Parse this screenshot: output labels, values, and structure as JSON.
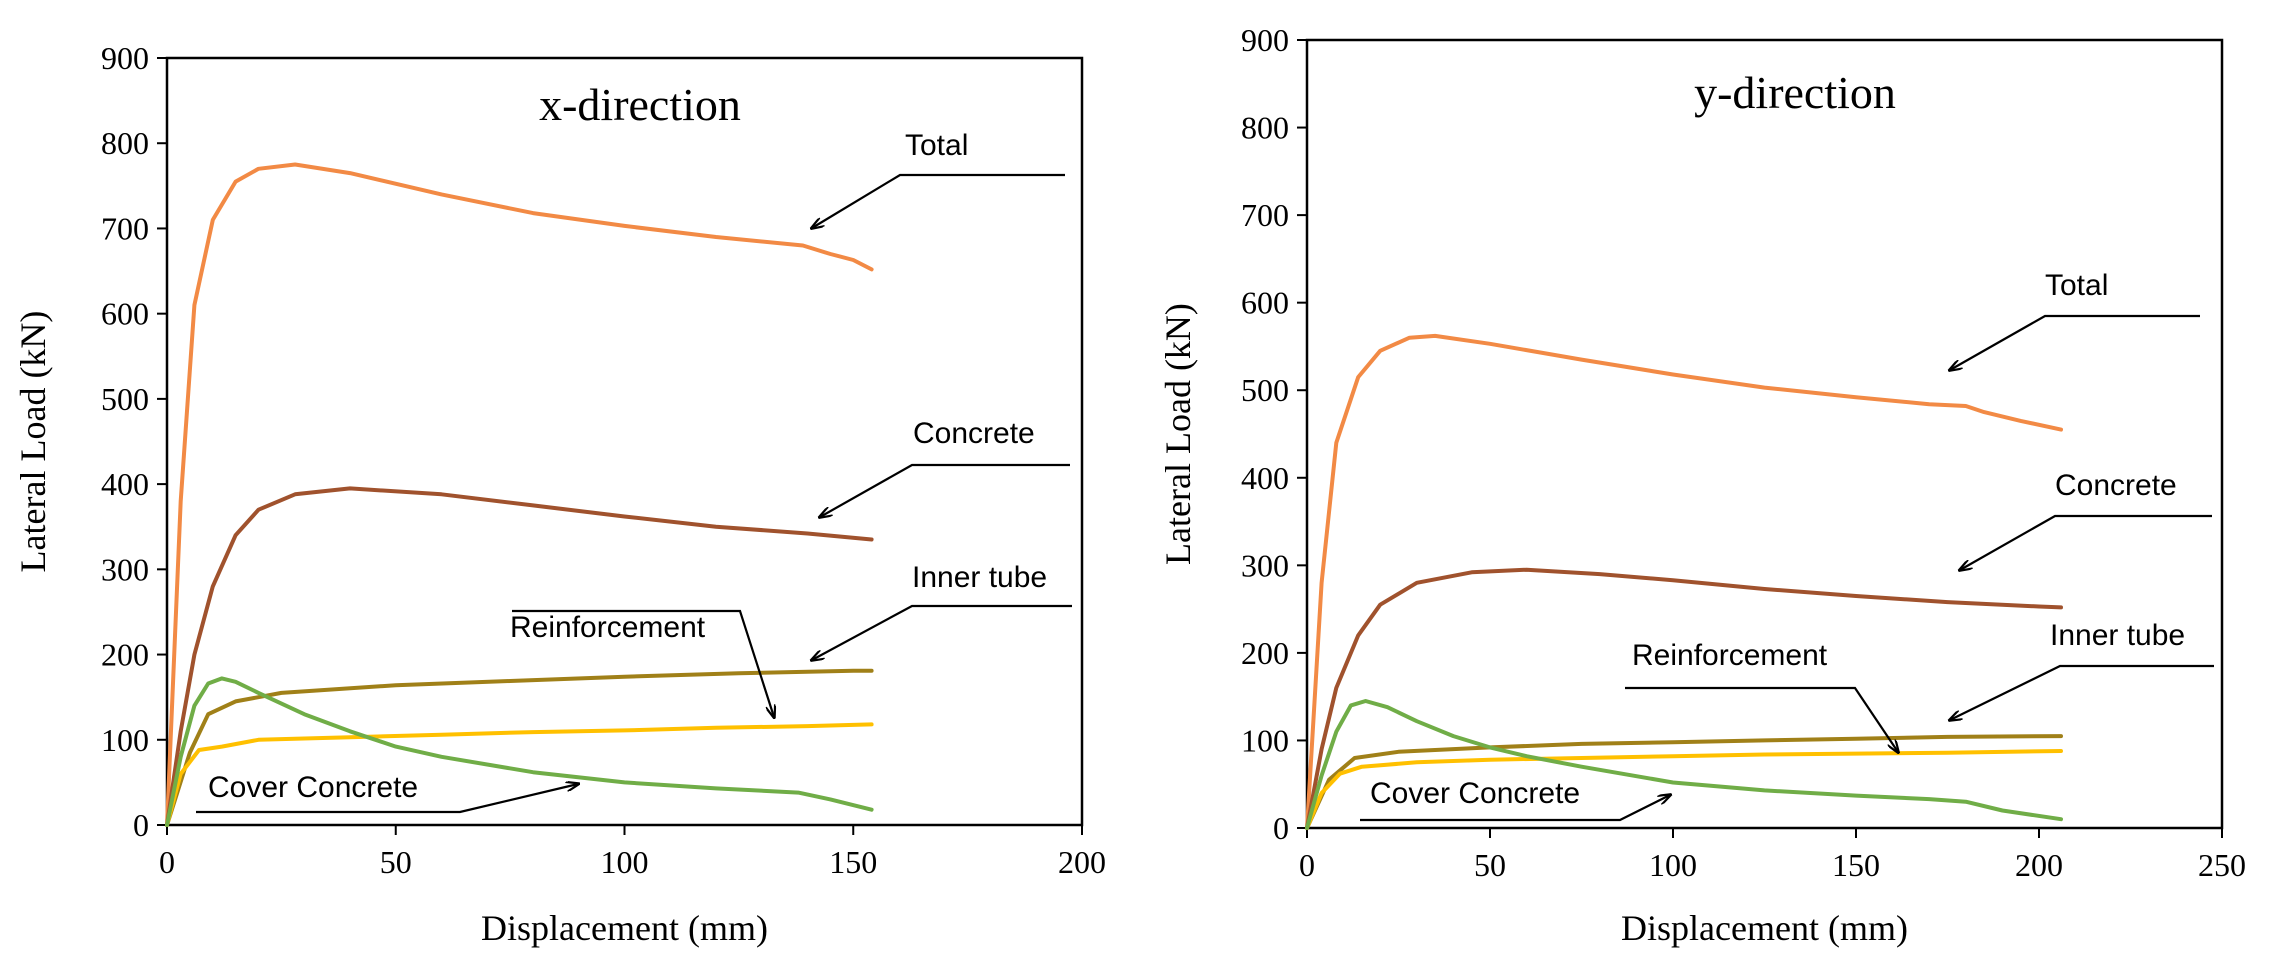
{
  "chart_data": [
    {
      "type": "line",
      "title": "x-direction",
      "xlabel": "Displacement (mm)",
      "ylabel": "Lateral Load (kN)",
      "xlim": [
        0,
        200
      ],
      "ylim": [
        0,
        900
      ],
      "xticks": [
        "0",
        "50",
        "100",
        "150",
        "200"
      ],
      "yticks": [
        "0",
        "100",
        "200",
        "300",
        "400",
        "500",
        "600",
        "700",
        "800",
        "900"
      ],
      "grid": false,
      "series": [
        {
          "name": "Total",
          "color": "#f28a45",
          "points": [
            [
              0,
              0
            ],
            [
              3,
              380
            ],
            [
              6,
              610
            ],
            [
              10,
              710
            ],
            [
              15,
              755
            ],
            [
              20,
              770
            ],
            [
              28,
              775
            ],
            [
              40,
              765
            ],
            [
              60,
              740
            ],
            [
              80,
              718
            ],
            [
              100,
              703
            ],
            [
              120,
              690
            ],
            [
              139,
              680
            ],
            [
              145,
              670
            ],
            [
              150,
              663
            ],
            [
              154,
              652
            ]
          ]
        },
        {
          "name": "Concrete",
          "color": "#a0522d",
          "points": [
            [
              0,
              0
            ],
            [
              3,
              110
            ],
            [
              6,
              200
            ],
            [
              10,
              280
            ],
            [
              15,
              340
            ],
            [
              20,
              370
            ],
            [
              28,
              388
            ],
            [
              40,
              395
            ],
            [
              60,
              388
            ],
            [
              80,
              375
            ],
            [
              100,
              362
            ],
            [
              120,
              350
            ],
            [
              140,
              342
            ],
            [
              154,
              335
            ]
          ]
        },
        {
          "name": "Inner tube",
          "color": "#a08018",
          "points": [
            [
              0,
              0
            ],
            [
              5,
              85
            ],
            [
              9,
              130
            ],
            [
              15,
              145
            ],
            [
              25,
              155
            ],
            [
              50,
              164
            ],
            [
              75,
              169
            ],
            [
              100,
              174
            ],
            [
              125,
              178
            ],
            [
              150,
              181
            ],
            [
              154,
              181
            ]
          ]
        },
        {
          "name": "Reinforcement",
          "color": "#ffc000",
          "points": [
            [
              0,
              0
            ],
            [
              3,
              60
            ],
            [
              7,
              88
            ],
            [
              12,
              92
            ],
            [
              20,
              100
            ],
            [
              40,
              103
            ],
            [
              60,
              106
            ],
            [
              80,
              109
            ],
            [
              100,
              111
            ],
            [
              120,
              114
            ],
            [
              140,
              116
            ],
            [
              154,
              118
            ]
          ]
        },
        {
          "name": "Cover Concrete",
          "color": "#70ad47",
          "points": [
            [
              0,
              0
            ],
            [
              3,
              80
            ],
            [
              6,
              140
            ],
            [
              9,
              166
            ],
            [
              12,
              172
            ],
            [
              15,
              168
            ],
            [
              20,
              155
            ],
            [
              30,
              130
            ],
            [
              40,
              110
            ],
            [
              50,
              92
            ],
            [
              60,
              80
            ],
            [
              80,
              62
            ],
            [
              100,
              50
            ],
            [
              120,
              43
            ],
            [
              138,
              38
            ],
            [
              145,
              30
            ],
            [
              154,
              18
            ]
          ]
        }
      ],
      "annotations": [
        {
          "text": "Total"
        },
        {
          "text": "Concrete"
        },
        {
          "text": "Inner tube"
        },
        {
          "text": "Reinforcement"
        },
        {
          "text": "Cover Concrete"
        }
      ]
    },
    {
      "type": "line",
      "title": "y-direction",
      "xlabel": "Displacement (mm)",
      "ylabel": "Lateral Load (kN)",
      "xlim": [
        0,
        250
      ],
      "ylim": [
        0,
        900
      ],
      "xticks": [
        "0",
        "50",
        "100",
        "150",
        "200",
        "250"
      ],
      "yticks": [
        "0",
        "100",
        "200",
        "300",
        "400",
        "500",
        "600",
        "700",
        "800",
        "900"
      ],
      "grid": false,
      "series": [
        {
          "name": "Total",
          "color": "#f28a45",
          "points": [
            [
              0,
              0
            ],
            [
              4,
              280
            ],
            [
              8,
              440
            ],
            [
              14,
              515
            ],
            [
              20,
              545
            ],
            [
              28,
              560
            ],
            [
              35,
              562
            ],
            [
              50,
              553
            ],
            [
              75,
              535
            ],
            [
              100,
              518
            ],
            [
              125,
              503
            ],
            [
              150,
              492
            ],
            [
              170,
              484
            ],
            [
              180,
              482
            ],
            [
              185,
              475
            ],
            [
              195,
              465
            ],
            [
              206,
              455
            ]
          ]
        },
        {
          "name": "Concrete",
          "color": "#a0522d",
          "points": [
            [
              0,
              0
            ],
            [
              4,
              90
            ],
            [
              8,
              160
            ],
            [
              14,
              220
            ],
            [
              20,
              255
            ],
            [
              30,
              280
            ],
            [
              45,
              292
            ],
            [
              60,
              295
            ],
            [
              80,
              290
            ],
            [
              100,
              283
            ],
            [
              125,
              273
            ],
            [
              150,
              265
            ],
            [
              175,
              258
            ],
            [
              200,
              253
            ],
            [
              206,
              252
            ]
          ]
        },
        {
          "name": "Inner tube",
          "color": "#a08018",
          "points": [
            [
              0,
              0
            ],
            [
              6,
              55
            ],
            [
              13,
              80
            ],
            [
              25,
              87
            ],
            [
              50,
              92
            ],
            [
              75,
              96
            ],
            [
              100,
              98
            ],
            [
              125,
              100
            ],
            [
              150,
              102
            ],
            [
              175,
              104
            ],
            [
              206,
              105
            ]
          ]
        },
        {
          "name": "Reinforcement",
          "color": "#ffc000",
          "points": [
            [
              0,
              0
            ],
            [
              4,
              40
            ],
            [
              9,
              62
            ],
            [
              15,
              70
            ],
            [
              30,
              75
            ],
            [
              50,
              78
            ],
            [
              75,
              80
            ],
            [
              100,
              82
            ],
            [
              125,
              84
            ],
            [
              150,
              85
            ],
            [
              175,
              86
            ],
            [
              206,
              88
            ]
          ]
        },
        {
          "name": "Cover Concrete",
          "color": "#70ad47",
          "points": [
            [
              0,
              0
            ],
            [
              4,
              60
            ],
            [
              8,
              110
            ],
            [
              12,
              140
            ],
            [
              16,
              145
            ],
            [
              22,
              138
            ],
            [
              30,
              122
            ],
            [
              40,
              105
            ],
            [
              50,
              92
            ],
            [
              60,
              82
            ],
            [
              75,
              70
            ],
            [
              100,
              52
            ],
            [
              125,
              43
            ],
            [
              150,
              37
            ],
            [
              170,
              33
            ],
            [
              180,
              30
            ],
            [
              190,
              20
            ],
            [
              206,
              10
            ]
          ]
        }
      ],
      "annotations": [
        {
          "text": "Total"
        },
        {
          "text": "Concrete"
        },
        {
          "text": "Inner tube"
        },
        {
          "text": "Reinforcement"
        },
        {
          "text": "Cover Concrete"
        }
      ]
    }
  ]
}
